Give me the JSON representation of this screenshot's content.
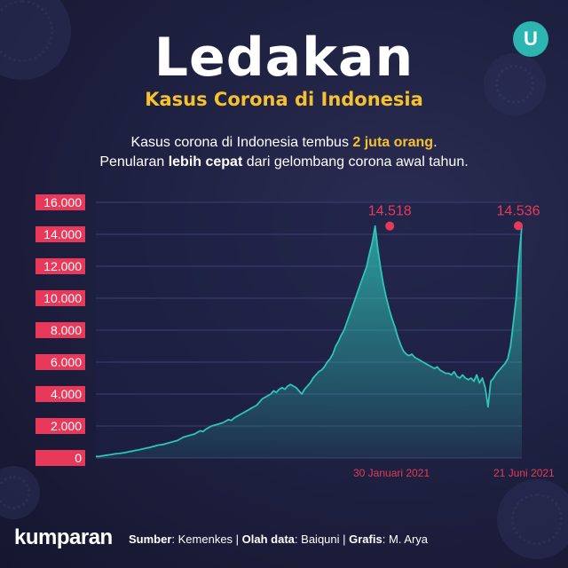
{
  "title": "Ledakan",
  "subtitle": "Kasus Corona di Indonesia",
  "description": {
    "line1_pre": "Kasus corona di Indonesia tembus ",
    "line1_highlight": "2 juta orang",
    "line1_post": ".",
    "line2_pre": "Penularan ",
    "line2_bold": "lebih cepat",
    "line2_post": " dari gelombang corona awal tahun."
  },
  "footer": {
    "brand": "kumparan",
    "source_label": "Sumber",
    "source": "Kemenkes",
    "data_label": "Olah data",
    "data_by": "Baiquni",
    "graphic_label": "Grafis",
    "graphic_by": "M. Arya"
  },
  "colors": {
    "accent": "#e8395a",
    "highlight": "#f6c12f",
    "series": "#2ec4b6",
    "background": "#1b1d3a"
  },
  "icons": {
    "logo": "kumparan-u-badge-icon"
  },
  "chart_data": {
    "type": "area",
    "title": "",
    "xlabel": "",
    "ylabel": "",
    "ylim": [
      0,
      16000
    ],
    "yticks": [
      "0",
      "2.000",
      "4.000",
      "6.000",
      "8.000",
      "10.000",
      "12.000",
      "14.000",
      "16.000"
    ],
    "yvalues": [
      0,
      2000,
      4000,
      6000,
      8000,
      10000,
      12000,
      14000,
      16000
    ],
    "x_labels": [
      "30 Januari 2021",
      "21 Juni 2021"
    ],
    "x_labels_pos": [
      0.69,
      1.0
    ],
    "grid": true,
    "annotations": [
      {
        "label": "14.518",
        "value": 14518,
        "pos": 0.69
      },
      {
        "label": "14.536",
        "value": 14536,
        "pos": 1.0
      }
    ],
    "series": [
      {
        "values": [
          100,
          90,
          120,
          150,
          180,
          200,
          230,
          260,
          280,
          300,
          330,
          360,
          400,
          430,
          470,
          500,
          540,
          580,
          620,
          650,
          700,
          750,
          800,
          820,
          850,
          900,
          950,
          1000,
          1050,
          1100,
          1200,
          1300,
          1350,
          1400,
          1450,
          1500,
          1600,
          1700,
          1650,
          1800,
          1900,
          2000,
          2050,
          2100,
          2150,
          2200,
          2300,
          2400,
          2350,
          2500,
          2600,
          2700,
          2800,
          2900,
          3000,
          3100,
          3200,
          3300,
          3500,
          3700,
          3800,
          3900,
          4000,
          4200,
          4100,
          4300,
          4400,
          4300,
          4500,
          4600,
          4500,
          4400,
          4200,
          4000,
          4300,
          4500,
          4700,
          5000,
          5200,
          5400,
          5500,
          5700,
          6000,
          6200,
          6500,
          7000,
          7300,
          7700,
          8000,
          8500,
          9000,
          9500,
          10000,
          10500,
          11000,
          11500,
          12000,
          12800,
          13500,
          14518,
          13000,
          11800,
          10800,
          10000,
          9300,
          8700,
          8200,
          7600,
          7100,
          6700,
          6500,
          6400,
          6500,
          6300,
          6200,
          6100,
          6000,
          5900,
          5800,
          5700,
          5600,
          5700,
          5500,
          5400,
          5300,
          5300,
          5200,
          5400,
          5100,
          5000,
          5200,
          5000,
          4900,
          5000,
          4800,
          5200,
          4700,
          5000,
          4400,
          3200,
          4800,
          5000,
          5300,
          5500,
          5700,
          5900,
          6200,
          7000,
          8500,
          10000,
          12500,
          14536
        ]
      }
    ]
  }
}
